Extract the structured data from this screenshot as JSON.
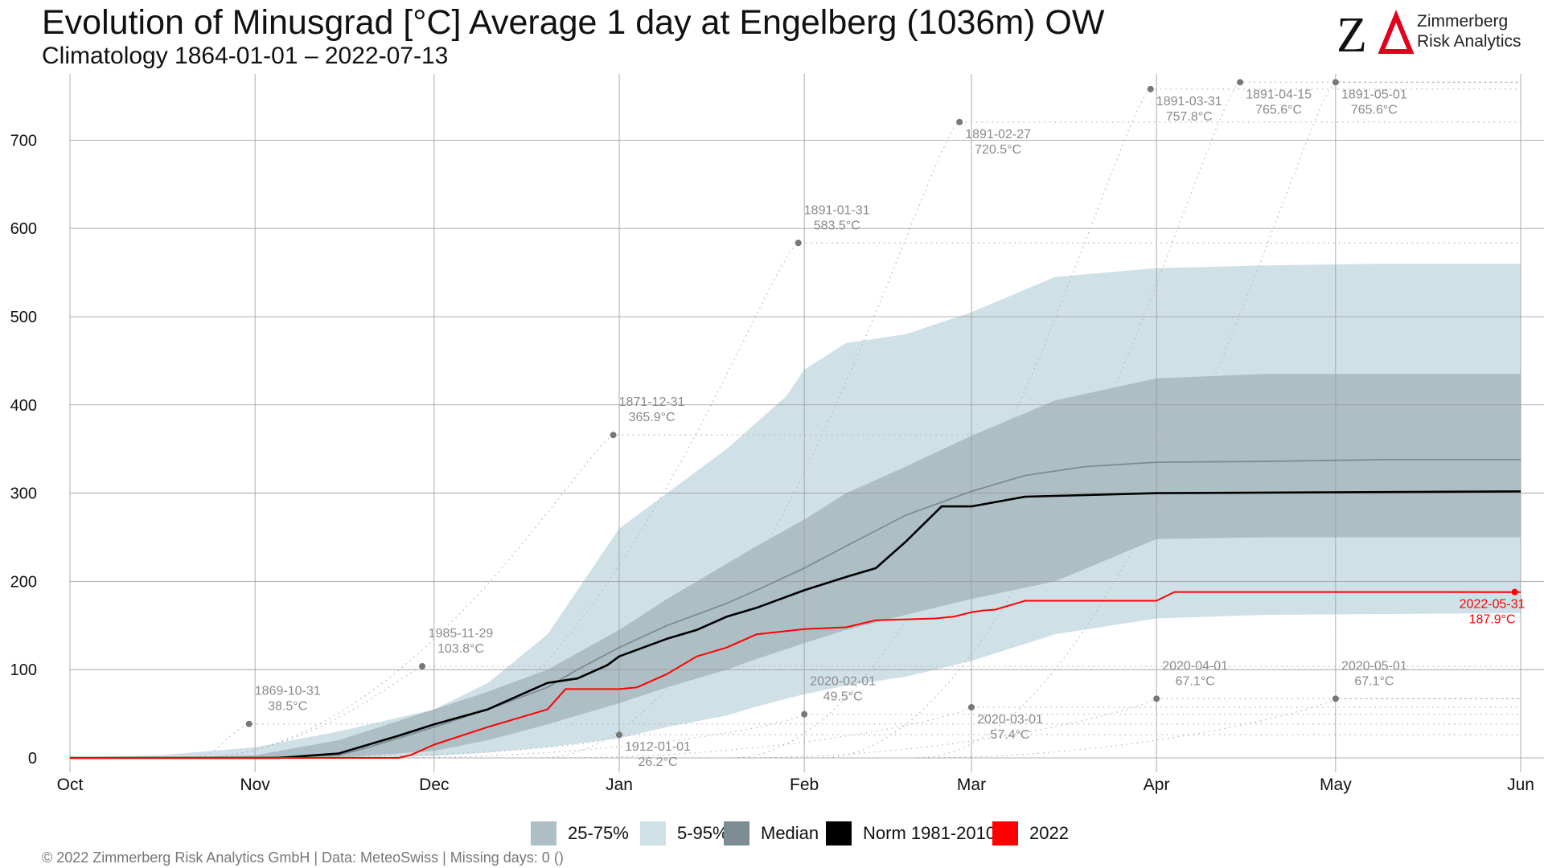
{
  "title": "Evolution of Minusgrad [°C] Average 1 day at Engelberg (1036m) OW",
  "subtitle": "Climatology 1864-01-01 – 2022-07-13",
  "logo": {
    "symbol": "ZΔ",
    "line1": "Zimmerberg",
    "line2": "Risk Analytics",
    "delta_color": "#e2001a"
  },
  "footer": "©  2022 Zimmerberg Risk Analytics GmbH | Data: MeteoSwiss | Missing days: 0 ()",
  "colors": {
    "band_25_75": "#adbfc5",
    "band_5_95": "#cfe1e7",
    "median": "#7b8c93",
    "norm": "#000000",
    "current": "#ff0000",
    "historic": "#b8b8b8",
    "annot": "#8a8a8a",
    "grid": "#999999"
  },
  "legend": [
    {
      "label": "25-75%",
      "color": "#adbfc5"
    },
    {
      "label": "5-95%",
      "color": "#cfe1e7"
    },
    {
      "label": "Median",
      "color": "#7b8c93"
    },
    {
      "label": "Norm 1981-2010",
      "color": "#000000"
    },
    {
      "label": "2022",
      "color": "#ff0000"
    }
  ],
  "chart_data": {
    "type": "area",
    "x_axis": "days since Oct 1",
    "xlim": [
      0,
      243
    ],
    "ylim": [
      0,
      775
    ],
    "x_ticks": [
      {
        "label": "Oct",
        "day": 0
      },
      {
        "label": "Nov",
        "day": 31
      },
      {
        "label": "Dec",
        "day": 61
      },
      {
        "label": "Jan",
        "day": 92
      },
      {
        "label": "Feb",
        "day": 123
      },
      {
        "label": "Mar",
        "day": 151
      },
      {
        "label": "Apr",
        "day": 182
      },
      {
        "label": "May",
        "day": 212
      },
      {
        "label": "Jun",
        "day": 243
      }
    ],
    "y_ticks": [
      0,
      100,
      200,
      300,
      400,
      500,
      600,
      700
    ],
    "grid": true,
    "series": [
      {
        "name": "5-95%",
        "kind": "band",
        "x": [
          0,
          15,
          31,
          45,
          61,
          70,
          80,
          92,
          100,
          110,
          115,
          120,
          123,
          130,
          140,
          151,
          165,
          182,
          200,
          220,
          243
        ],
        "low": [
          0,
          0,
          0,
          0,
          2,
          6,
          12,
          22,
          35,
          48,
          58,
          67,
          72,
          82,
          92,
          110,
          140,
          158,
          162,
          163,
          164
        ],
        "high": [
          0,
          3,
          12,
          30,
          55,
          85,
          140,
          260,
          300,
          350,
          380,
          410,
          440,
          470,
          480,
          505,
          545,
          555,
          558,
          560,
          560
        ]
      },
      {
        "name": "25-75%",
        "kind": "band",
        "x": [
          0,
          15,
          31,
          45,
          61,
          70,
          80,
          92,
          100,
          110,
          115,
          123,
          130,
          140,
          151,
          165,
          182,
          200,
          220,
          243
        ],
        "low": [
          0,
          0,
          0,
          0,
          8,
          20,
          38,
          62,
          80,
          100,
          112,
          130,
          145,
          162,
          180,
          200,
          248,
          250,
          250,
          250
        ],
        "high": [
          0,
          0,
          3,
          20,
          55,
          75,
          100,
          145,
          180,
          220,
          240,
          270,
          300,
          330,
          365,
          405,
          430,
          435,
          435,
          435
        ]
      },
      {
        "name": "Median",
        "x": [
          0,
          20,
          31,
          45,
          50,
          61,
          70,
          80,
          85,
          92,
          100,
          110,
          115,
          123,
          130,
          140,
          151,
          160,
          170,
          182,
          200,
          220,
          243
        ],
        "values": [
          0,
          0,
          0,
          3,
          12,
          35,
          55,
          80,
          100,
          125,
          150,
          175,
          190,
          215,
          240,
          275,
          302,
          320,
          330,
          335,
          336,
          338,
          338
        ]
      },
      {
        "name": "Norm 1981-2010",
        "x": [
          0,
          35,
          45,
          50,
          55,
          61,
          70,
          75,
          80,
          85,
          90,
          92,
          100,
          105,
          110,
          115,
          123,
          130,
          135,
          140,
          146,
          151,
          160,
          182,
          243
        ],
        "values": [
          0,
          0,
          5,
          15,
          25,
          38,
          55,
          70,
          85,
          90,
          105,
          115,
          135,
          145,
          160,
          170,
          190,
          205,
          215,
          245,
          285,
          285,
          296,
          300,
          302
        ]
      },
      {
        "name": "2022",
        "x": [
          0,
          55,
          57,
          61,
          70,
          75,
          80,
          83,
          90,
          92,
          95,
          100,
          105,
          110,
          115,
          123,
          130,
          135,
          145,
          148,
          151,
          153,
          155,
          160,
          182,
          185,
          243
        ],
        "values": [
          0,
          0,
          3,
          15,
          35,
          45,
          55,
          78,
          78,
          78,
          80,
          95,
          115,
          125,
          140,
          146,
          148,
          156,
          158,
          160,
          165,
          167,
          168,
          178,
          178,
          188,
          187.9
        ]
      }
    ],
    "annotations": [
      {
        "date": "1869-10-31",
        "value": 38.5,
        "label": "38.5°C",
        "day": 30,
        "side": "above"
      },
      {
        "date": "1985-11-29",
        "value": 103.8,
        "label": "103.8°C",
        "day": 59,
        "side": "above"
      },
      {
        "date": "1871-12-31",
        "value": 365.9,
        "label": "365.9°C",
        "day": 91,
        "side": "above"
      },
      {
        "date": "1912-01-01",
        "value": 26.2,
        "label": "26.2°C",
        "day": 92,
        "side": "below"
      },
      {
        "date": "1891-01-31",
        "value": 583.5,
        "label": "583.5°C",
        "day": 122,
        "side": "above"
      },
      {
        "date": "2020-02-01",
        "value": 49.5,
        "label": "49.5°C",
        "day": 123,
        "side": "above"
      },
      {
        "date": "1891-02-27",
        "value": 720.5,
        "label": "720.5°C",
        "day": 149,
        "side": "below"
      },
      {
        "date": "2020-03-01",
        "value": 57.4,
        "label": "57.4°C",
        "day": 151,
        "side": "below"
      },
      {
        "date": "1891-03-31",
        "value": 757.8,
        "label": "757.8°C",
        "day": 181,
        "side": "below"
      },
      {
        "date": "2020-04-01",
        "value": 67.1,
        "label": "67.1°C",
        "day": 182,
        "side": "above"
      },
      {
        "date": "1891-04-15",
        "value": 765.6,
        "label": "765.6°C",
        "day": 196,
        "side": "below"
      },
      {
        "date": "1891-05-01",
        "value": 765.6,
        "label": "765.6°C",
        "day": 212,
        "side": "below"
      },
      {
        "date": "2020-05-01",
        "value": 67.1,
        "label": "67.1°C",
        "day": 212,
        "side": "above"
      },
      {
        "date": "2022-05-31",
        "value": 187.9,
        "label": "187.9°C",
        "day": 242,
        "side": "below",
        "highlight": true
      }
    ]
  }
}
